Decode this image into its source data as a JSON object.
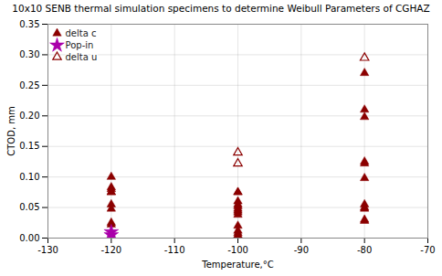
{
  "chart_data": {
    "type": "scatter",
    "title": "10x10 SENB thermal simulation specimens to determine Weibull Parameters of CGHAZ",
    "xlabel": "Temperature,°C",
    "ylabel": "CTOD, mm",
    "xlim": [
      -130,
      -70
    ],
    "ylim": [
      0,
      0.35
    ],
    "xticks": [
      -130,
      -120,
      -110,
      -100,
      -90,
      -80,
      -70
    ],
    "yticks": [
      {
        "value": 0,
        "label": "0.00"
      },
      0.05,
      {
        "value": 0.1,
        "label": "0.10"
      },
      0.15,
      {
        "value": 0.2,
        "label": "0.20"
      },
      0.25,
      {
        "value": 0.3,
        "label": "0.30"
      },
      0.35
    ],
    "grid": true,
    "legend": "upper left",
    "series": [
      {
        "name": "delta c",
        "color": "#8B0000",
        "marker": "triangle",
        "x": [
          -120,
          -120,
          -120,
          -120,
          -120,
          -120,
          -120,
          -120,
          -120,
          -100,
          -100,
          -100,
          -100,
          -100,
          -100,
          -100,
          -100,
          -100,
          -100,
          -100,
          -100,
          -100,
          -100,
          -100,
          -80,
          -80,
          -80,
          -80,
          -80,
          -80,
          -80,
          -80,
          -80,
          -80,
          -80
        ],
        "values": [
          0.1,
          0.083,
          0.08,
          0.075,
          0.075,
          0.055,
          0.048,
          0.025,
          0.022,
          0.075,
          0.075,
          0.06,
          0.055,
          0.052,
          0.048,
          0.045,
          0.042,
          0.038,
          0.02,
          0.012,
          0.008,
          0.005,
          0.002,
          0.001,
          0.27,
          0.21,
          0.198,
          0.125,
          0.122,
          0.098,
          0.055,
          0.05,
          0.048,
          0.03,
          0.028
        ]
      },
      {
        "name": "Pop-in",
        "color": "#AA00AA",
        "marker": "star",
        "x": [
          -120,
          -120
        ],
        "values": [
          0.01,
          0.005
        ]
      },
      {
        "name": "delta u",
        "color": "#8B0000",
        "marker": "triangle-open",
        "x": [
          -100,
          -100,
          -80
        ],
        "values": [
          0.14,
          0.122,
          0.295
        ]
      }
    ]
  }
}
